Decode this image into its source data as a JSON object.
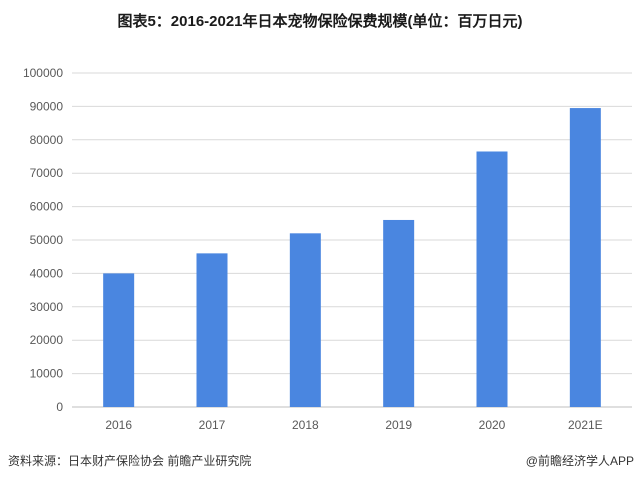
{
  "title": "图表5：2016-2021年日本宠物保险保费规模(单位：百万日元)",
  "footer": {
    "source": "资料来源：日本财产保险协会 前瞻产业研究院",
    "brand": "@前瞻经济学人APP"
  },
  "chart_data": {
    "type": "bar",
    "categories": [
      "2016",
      "2017",
      "2018",
      "2019",
      "2020",
      "2021E"
    ],
    "values": [
      40000,
      46000,
      52000,
      56000,
      76500,
      89500
    ],
    "ylim": [
      0,
      100000
    ],
    "yticks": [
      "0",
      "10000",
      "20000",
      "30000",
      "40000",
      "50000",
      "60000",
      "70000",
      "80000",
      "90000",
      "100000"
    ],
    "grid": true,
    "colors": {
      "bar": "#4a86e0",
      "grid": "#d9d9d9"
    }
  }
}
